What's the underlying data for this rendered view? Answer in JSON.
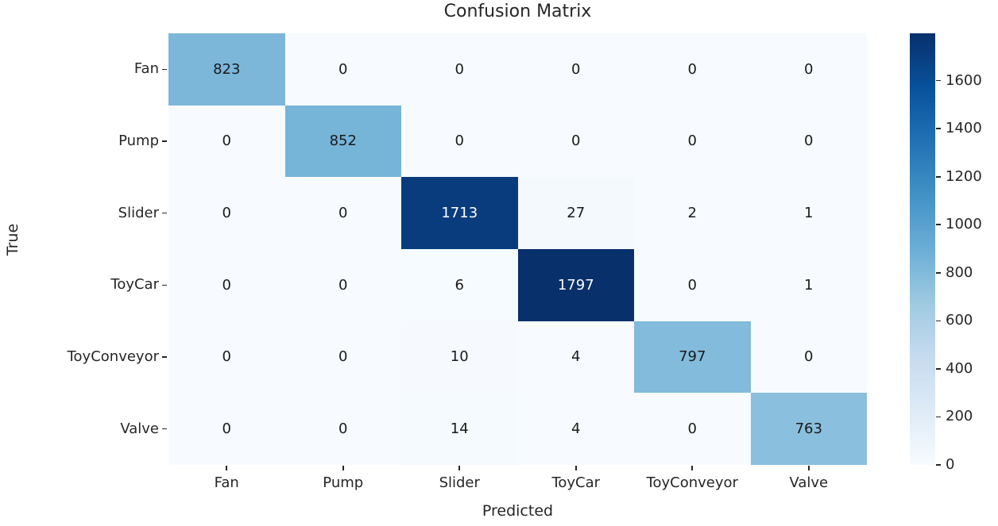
{
  "chart_data": {
    "type": "heatmap",
    "title": "Confusion Matrix",
    "xlabel": "Predicted",
    "ylabel": "True",
    "x_categories": [
      "Fan",
      "Pump",
      "Slider",
      "ToyCar",
      "ToyConveyor",
      "Valve"
    ],
    "y_categories": [
      "Fan",
      "Pump",
      "Slider",
      "ToyCar",
      "ToyConveyor",
      "Valve"
    ],
    "matrix": [
      [
        823,
        0,
        0,
        0,
        0,
        0
      ],
      [
        0,
        852,
        0,
        0,
        0,
        0
      ],
      [
        0,
        0,
        1713,
        27,
        2,
        1
      ],
      [
        0,
        0,
        6,
        1797,
        0,
        1
      ],
      [
        0,
        0,
        10,
        4,
        797,
        0
      ],
      [
        0,
        0,
        14,
        4,
        0,
        763
      ]
    ],
    "vmin": 0,
    "vmax": 1797,
    "colorbar_ticks": [
      0,
      200,
      400,
      600,
      800,
      1000,
      1200,
      1400,
      1600
    ],
    "colorbar_position": "right",
    "grid": false,
    "colormap": {
      "name": "Blues",
      "stops": [
        "#f7fbff",
        "#deebf7",
        "#c6dbef",
        "#9ecae1",
        "#6baed6",
        "#4292c6",
        "#2171b5",
        "#08519c",
        "#08306b"
      ]
    },
    "text_colors": {
      "dark_cell_text": "#ffffff",
      "light_cell_text": "#1a1a1a",
      "axis_text": "#262626"
    }
  }
}
